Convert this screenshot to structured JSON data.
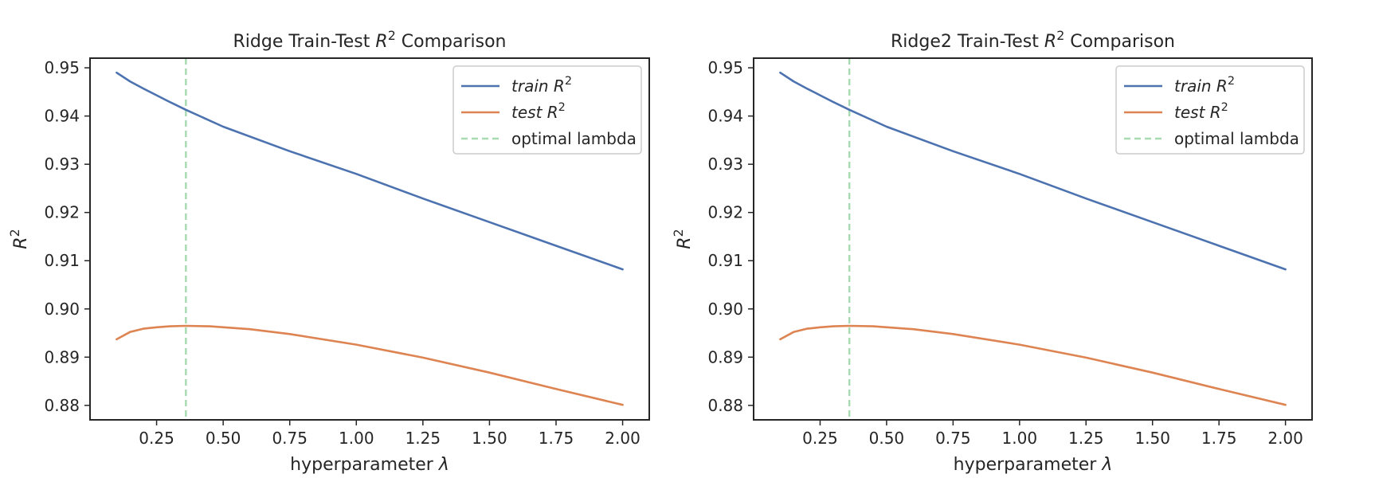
{
  "chart_data": [
    {
      "type": "line",
      "title": "Ridge Train-Test R² Comparison",
      "xlabel": "hyperparameter λ",
      "ylabel": "R²",
      "xlim": [
        -0.0,
        2.1
      ],
      "ylim": [
        0.877,
        0.952
      ],
      "xticks": [
        0.25,
        0.5,
        0.75,
        1.0,
        1.25,
        1.5,
        1.75,
        2.0
      ],
      "xtick_labels": [
        "0.25",
        "0.50",
        "0.75",
        "1.00",
        "1.25",
        "1.50",
        "1.75",
        "2.00"
      ],
      "yticks": [
        0.88,
        0.89,
        0.9,
        0.91,
        0.92,
        0.93,
        0.94,
        0.95
      ],
      "ytick_labels": [
        "0.88",
        "0.89",
        "0.90",
        "0.91",
        "0.92",
        "0.93",
        "0.94",
        "0.95"
      ],
      "grid": false,
      "legend_position": "top-right",
      "vline": {
        "name": "optimal lambda",
        "x": 0.36,
        "color": "#a8dbb1"
      },
      "series": [
        {
          "name": "train R²",
          "color": "#4c72b0",
          "x": [
            0.1,
            0.15,
            0.2,
            0.25,
            0.3,
            0.36,
            0.5,
            0.75,
            1.0,
            1.25,
            1.5,
            1.75,
            2.0
          ],
          "values": [
            0.949,
            0.9472,
            0.9457,
            0.9443,
            0.9429,
            0.9413,
            0.9378,
            0.9327,
            0.928,
            0.9229,
            0.918,
            0.9131,
            0.9082
          ]
        },
        {
          "name": "test R²",
          "color": "#dd8452",
          "x": [
            0.1,
            0.15,
            0.2,
            0.25,
            0.3,
            0.36,
            0.45,
            0.6,
            0.75,
            1.0,
            1.25,
            1.5,
            1.75,
            2.0
          ],
          "values": [
            0.8937,
            0.8952,
            0.8959,
            0.8962,
            0.8964,
            0.8965,
            0.8964,
            0.8958,
            0.8948,
            0.8926,
            0.8899,
            0.8868,
            0.8834,
            0.8801
          ]
        }
      ]
    },
    {
      "type": "line",
      "title": "Ridge2 Train-Test R² Comparison",
      "xlabel": "hyperparameter λ",
      "ylabel": "R²",
      "xlim": [
        -0.0,
        2.1
      ],
      "ylim": [
        0.877,
        0.952
      ],
      "xticks": [
        0.25,
        0.5,
        0.75,
        1.0,
        1.25,
        1.5,
        1.75,
        2.0
      ],
      "xtick_labels": [
        "0.25",
        "0.50",
        "0.75",
        "1.00",
        "1.25",
        "1.50",
        "1.75",
        "2.00"
      ],
      "yticks": [
        0.88,
        0.89,
        0.9,
        0.91,
        0.92,
        0.93,
        0.94,
        0.95
      ],
      "ytick_labels": [
        "0.88",
        "0.89",
        "0.90",
        "0.91",
        "0.92",
        "0.93",
        "0.94",
        "0.95"
      ],
      "grid": false,
      "legend_position": "top-right",
      "vline": {
        "name": "optimal lambda",
        "x": 0.36,
        "color": "#a8dbb1"
      },
      "series": [
        {
          "name": "train R²",
          "color": "#4c72b0",
          "x": [
            0.1,
            0.15,
            0.2,
            0.25,
            0.3,
            0.36,
            0.5,
            0.75,
            1.0,
            1.25,
            1.5,
            1.75,
            2.0
          ],
          "values": [
            0.949,
            0.9472,
            0.9457,
            0.9443,
            0.9429,
            0.9413,
            0.9378,
            0.9327,
            0.928,
            0.9229,
            0.918,
            0.9131,
            0.9082
          ]
        },
        {
          "name": "test R²",
          "color": "#dd8452",
          "x": [
            0.1,
            0.15,
            0.2,
            0.25,
            0.3,
            0.36,
            0.45,
            0.6,
            0.75,
            1.0,
            1.25,
            1.5,
            1.75,
            2.0
          ],
          "values": [
            0.8937,
            0.8952,
            0.8959,
            0.8962,
            0.8964,
            0.8965,
            0.8964,
            0.8958,
            0.8948,
            0.8926,
            0.8899,
            0.8868,
            0.8834,
            0.8801
          ]
        }
      ]
    }
  ]
}
